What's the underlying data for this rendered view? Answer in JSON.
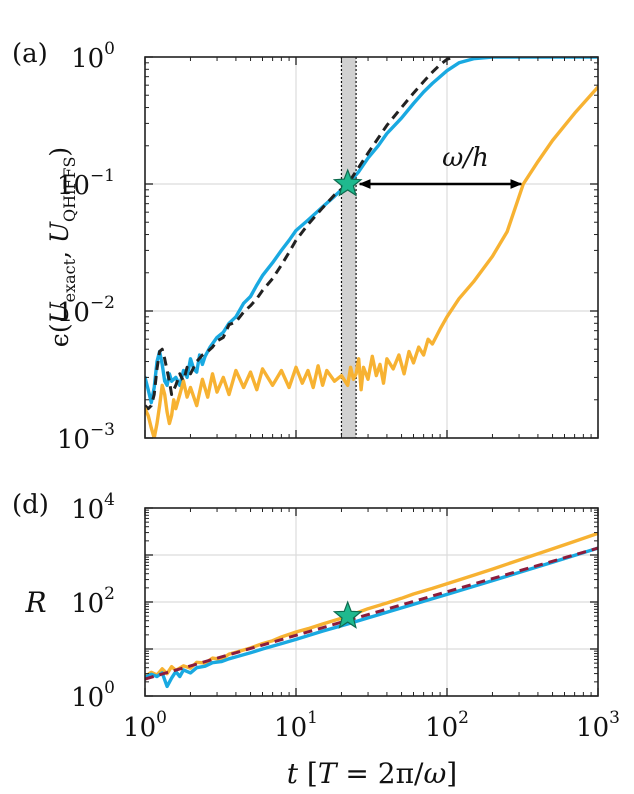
{
  "chart_data": [
    {
      "panel_label": "(a)",
      "type": "line",
      "xscale": "log",
      "yscale": "log",
      "xlim": [
        1,
        1000
      ],
      "ylim": [
        0.001,
        1
      ],
      "grid": true,
      "ylabel": "ε(Û_exact, Û_QHiFFS)",
      "ylabel_parts": {
        "eps": "ϵ(",
        "u1": "U",
        "sub1": "exact",
        "comma": ", ",
        "u2": "U",
        "sub2": "QHiFFS",
        "close": ")"
      },
      "y_ticks": [
        {
          "base": "10",
          "exp": "−3"
        },
        {
          "base": "10",
          "exp": "−2"
        },
        {
          "base": "10",
          "exp": "−1"
        },
        {
          "base": "10",
          "exp": "0"
        }
      ],
      "shaded_band": {
        "x_from": 20,
        "x_to": 25
      },
      "annotation": {
        "text": "ω/h",
        "arrow_from_x": 22,
        "arrow_to_x": 320,
        "at_y": 0.1
      },
      "star": {
        "x": 22,
        "y": 0.1,
        "color": "#1fb98e"
      },
      "series": [
        {
          "name": "blue",
          "color": "#19a9e1",
          "style": "solid",
          "x": [
            1.0,
            1.05,
            1.1,
            1.15,
            1.2,
            1.25,
            1.3,
            1.35,
            1.4,
            1.45,
            1.5,
            1.6,
            1.7,
            1.8,
            1.9,
            2.0,
            2.1,
            2.2,
            2.3,
            2.4,
            2.5,
            2.7,
            3.0,
            3.3,
            3.6,
            4.0,
            4.5,
            5.0,
            5.5,
            6.0,
            7.0,
            8.0,
            9.0,
            10,
            12,
            15,
            18,
            22,
            26,
            30,
            35,
            40,
            50,
            60,
            70,
            80,
            100,
            120,
            150,
            200,
            300,
            500,
            1000
          ],
          "y": [
            0.003,
            0.0024,
            0.0019,
            0.0025,
            0.004,
            0.0048,
            0.0038,
            0.0028,
            0.0026,
            0.0032,
            0.0028,
            0.003,
            0.0026,
            0.0034,
            0.003,
            0.0042,
            0.0035,
            0.0033,
            0.0045,
            0.0038,
            0.0044,
            0.0052,
            0.0062,
            0.0068,
            0.008,
            0.009,
            0.0115,
            0.013,
            0.016,
            0.019,
            0.024,
            0.03,
            0.036,
            0.043,
            0.052,
            0.066,
            0.08,
            0.1,
            0.125,
            0.16,
            0.2,
            0.25,
            0.33,
            0.43,
            0.53,
            0.62,
            0.78,
            0.9,
            0.97,
            1.0,
            1.0,
            1.0,
            1.0
          ]
        },
        {
          "name": "black-dashed",
          "color": "#222222",
          "style": "dashed",
          "x": [
            1.0,
            1.05,
            1.1,
            1.15,
            1.2,
            1.25,
            1.3,
            1.35,
            1.4,
            1.45,
            1.5,
            1.6,
            1.7,
            1.8,
            1.9,
            2.0,
            2.2,
            2.4,
            2.6,
            2.8,
            3.0,
            3.3,
            3.6,
            4.0,
            4.5,
            5.0,
            5.5,
            6.0,
            7.0,
            8.0,
            9.0,
            10,
            12,
            15,
            18,
            22,
            26,
            30,
            35,
            40,
            50,
            60,
            70,
            80,
            90,
            100,
            110
          ],
          "y": [
            0.0018,
            0.0017,
            0.0018,
            0.0022,
            0.0035,
            0.0048,
            0.005,
            0.0042,
            0.0034,
            0.0028,
            0.0022,
            0.0026,
            0.0032,
            0.0028,
            0.0036,
            0.0032,
            0.004,
            0.0045,
            0.0048,
            0.0052,
            0.0058,
            0.0062,
            0.0078,
            0.0082,
            0.0098,
            0.011,
            0.0125,
            0.0145,
            0.018,
            0.023,
            0.029,
            0.036,
            0.048,
            0.065,
            0.082,
            0.1,
            0.135,
            0.175,
            0.23,
            0.29,
            0.4,
            0.52,
            0.64,
            0.76,
            0.87,
            0.96,
            1.0
          ]
        },
        {
          "name": "orange",
          "color": "#f7b232",
          "style": "solid",
          "x": [
            1.0,
            1.05,
            1.1,
            1.15,
            1.2,
            1.25,
            1.3,
            1.35,
            1.4,
            1.45,
            1.5,
            1.55,
            1.6,
            1.7,
            1.8,
            1.9,
            2.0,
            2.2,
            2.4,
            2.6,
            2.8,
            3.0,
            3.3,
            3.6,
            4.0,
            4.5,
            5.0,
            5.5,
            6.0,
            7.0,
            8.0,
            9.0,
            10,
            11,
            12,
            13,
            14,
            15,
            16,
            18,
            20,
            22,
            23,
            24,
            25,
            26,
            27,
            28,
            30,
            32,
            34,
            36,
            38,
            40,
            44,
            48,
            52,
            56,
            60,
            65,
            70,
            75,
            80,
            90,
            100,
            120,
            150,
            200,
            250,
            320,
            400,
            500,
            700,
            1000
          ],
          "y": [
            0.0017,
            0.0015,
            0.0012,
            0.001,
            0.0013,
            0.0018,
            0.0026,
            0.0022,
            0.0016,
            0.0013,
            0.0015,
            0.002,
            0.0017,
            0.0022,
            0.0028,
            0.0021,
            0.0025,
            0.0018,
            0.0029,
            0.0021,
            0.0032,
            0.0023,
            0.003,
            0.0022,
            0.0034,
            0.0025,
            0.0033,
            0.0024,
            0.0035,
            0.0026,
            0.0034,
            0.0025,
            0.0036,
            0.0027,
            0.0034,
            0.0025,
            0.0037,
            0.0026,
            0.0034,
            0.0028,
            0.0031,
            0.0026,
            0.0036,
            0.0029,
            0.0032,
            0.0042,
            0.0024,
            0.0036,
            0.0029,
            0.0044,
            0.0031,
            0.0038,
            0.0027,
            0.0042,
            0.0035,
            0.0045,
            0.0032,
            0.0048,
            0.0039,
            0.0052,
            0.0045,
            0.006,
            0.0055,
            0.0072,
            0.009,
            0.0125,
            0.017,
            0.027,
            0.042,
            0.1,
            0.15,
            0.22,
            0.36,
            0.58
          ]
        }
      ]
    },
    {
      "panel_label": "(d)",
      "type": "line",
      "xscale": "log",
      "yscale": "log",
      "xlim": [
        1,
        1000
      ],
      "ylim": [
        1,
        10000
      ],
      "grid": true,
      "ylabel": "R",
      "xlabel": "t [T = 2π/ω]",
      "xlabel_parts": {
        "t": "t",
        "open": " [",
        "T": "T",
        "eq": " = 2π/",
        "omega": "ω",
        "close": "]"
      },
      "x_ticks": [
        {
          "base": "10",
          "exp": "0"
        },
        {
          "base": "10",
          "exp": "1"
        },
        {
          "base": "10",
          "exp": "2"
        },
        {
          "base": "10",
          "exp": "3"
        }
      ],
      "y_ticks": [
        {
          "base": "10",
          "exp": "0"
        },
        {
          "base": "10",
          "exp": "2"
        },
        {
          "base": "10",
          "exp": "4"
        }
      ],
      "star": {
        "x": 22,
        "y": 50,
        "color": "#1fb98e"
      },
      "series": [
        {
          "name": "orange",
          "color": "#f7b232",
          "style": "solid",
          "x": [
            1.0,
            1.1,
            1.2,
            1.3,
            1.4,
            1.5,
            1.6,
            1.8,
            2.0,
            2.2,
            2.5,
            2.8,
            3.2,
            3.6,
            4.0,
            4.5,
            5.0,
            6.0,
            7.0,
            8.0,
            10,
            12,
            15,
            20,
            25,
            30,
            40,
            50,
            60,
            80,
            100,
            150,
            200,
            300,
            500,
            700,
            1000
          ],
          "y": [
            2.6,
            3.2,
            2.8,
            3.8,
            3.0,
            4.2,
            3.5,
            4.4,
            3.9,
            5.2,
            5.0,
            6.4,
            6.0,
            7.8,
            8.5,
            9.5,
            10.5,
            13,
            15,
            18,
            23,
            27,
            34,
            45,
            58,
            72,
            95,
            120,
            148,
            195,
            245,
            370,
            500,
            780,
            1350,
            1950,
            2900
          ]
        },
        {
          "name": "blue",
          "color": "#19a9e1",
          "style": "solid",
          "x": [
            1.0,
            1.1,
            1.2,
            1.3,
            1.4,
            1.5,
            1.6,
            1.7,
            1.8,
            2.0,
            2.2,
            2.5,
            2.8,
            3.2,
            3.6,
            4.0,
            5.0,
            6.0,
            8.0,
            10,
            15,
            22,
            30,
            50,
            100,
            200,
            500,
            1000
          ],
          "y": [
            2.5,
            2.9,
            2.6,
            3.1,
            1.6,
            2.4,
            3.3,
            2.6,
            3.6,
            3.1,
            4.0,
            4.3,
            5.1,
            5.4,
            6.2,
            6.8,
            8.3,
            10,
            13,
            16,
            24,
            34,
            46,
            75,
            145,
            285,
            700,
            1400
          ]
        },
        {
          "name": "dark-red-dashed",
          "color": "#8c1c3c",
          "style": "dashed",
          "x": [
            1,
            1000
          ],
          "y": [
            2.3,
            1400
          ]
        }
      ]
    }
  ]
}
